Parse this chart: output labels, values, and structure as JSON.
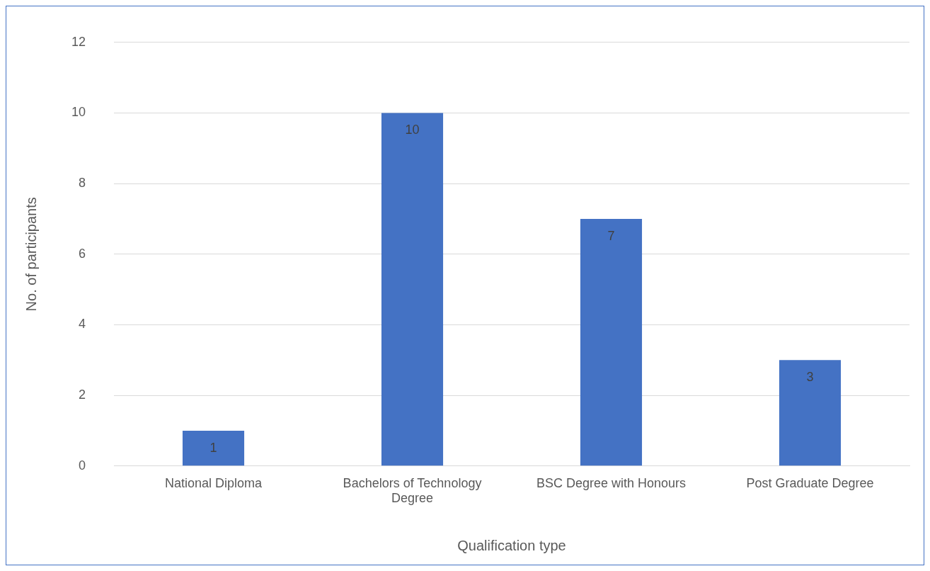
{
  "chart_data": {
    "type": "bar",
    "xlabel": "Qualification type",
    "ylabel": "No. of participants",
    "categories": [
      "National Diploma",
      "Bachelors of Technology Degree",
      "BSC Degree with Honours",
      "Post Graduate Degree"
    ],
    "values": [
      1,
      10,
      7,
      3
    ],
    "color": "#4472c4",
    "ylim": [
      0,
      12
    ],
    "yticks": [
      0,
      2,
      4,
      6,
      8,
      10,
      12
    ],
    "grid": "y",
    "data_labels": true,
    "legend": false
  }
}
